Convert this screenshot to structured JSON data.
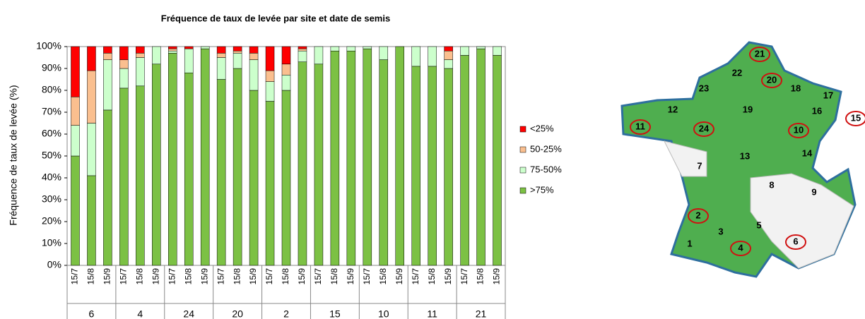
{
  "chart_data": {
    "type": "stacked_bar",
    "title": "Fréquence de taux de levée par site et date de semis",
    "y_label": "Fréquence de taux de levée (%)",
    "categories": [
      "15/7",
      "15/8",
      "15/9",
      "15/7",
      "15/8",
      "15/9",
      "15/7",
      "15/8",
      "15/9",
      "15/7",
      "15/8",
      "15/9",
      "15/7",
      "15/8",
      "15/9",
      "15/7",
      "15/8",
      "15/9",
      "15/7",
      "15/8",
      "15/9",
      "15/7",
      "15/8",
      "15/9",
      "15/7",
      "15/8",
      "15/9"
    ],
    "groups": [
      "6",
      "4",
      "24",
      "20",
      "2",
      "15",
      "10",
      "11",
      "21"
    ],
    "series": [
      {
        "name": ">75%",
        "color": "#7cc144",
        "values": [
          50,
          41,
          71,
          81,
          82,
          92,
          97,
          88,
          99,
          85,
          90,
          80,
          75,
          80,
          93,
          92,
          98,
          98,
          99,
          94,
          100,
          91,
          91,
          90,
          96,
          99,
          96
        ]
      },
      {
        "name": "75-50%",
        "color": "#ccffcc",
        "values": [
          14,
          24,
          23,
          9,
          13,
          8,
          1,
          11,
          1,
          10,
          7,
          14,
          9,
          7,
          5,
          8,
          2,
          2,
          1,
          6,
          0,
          9,
          9,
          4,
          4,
          1,
          4
        ]
      },
      {
        "name": "50-25%",
        "color": "#fabf8f",
        "values": [
          13,
          24,
          3,
          4,
          2,
          0,
          1,
          0,
          0,
          2,
          1,
          3,
          5,
          5,
          1,
          0,
          0,
          0,
          0,
          0,
          0,
          0,
          0,
          4,
          0,
          0,
          0
        ]
      },
      {
        "name": "<25%",
        "color": "#ff0000",
        "values": [
          23,
          11,
          3,
          6,
          3,
          0,
          1,
          1,
          0,
          3,
          2,
          3,
          11,
          8,
          1,
          0,
          0,
          0,
          0,
          0,
          0,
          0,
          0,
          2,
          0,
          0,
          0
        ]
      }
    ],
    "ylim": [
      0,
      100
    ],
    "yticks": [
      {
        "value": 0,
        "label": "0%"
      },
      {
        "value": 10,
        "label": "10%"
      },
      {
        "value": 20,
        "label": "20%"
      },
      {
        "value": 30,
        "label": "30%"
      },
      {
        "value": 40,
        "label": "40%"
      },
      {
        "value": 50,
        "label": "50%"
      },
      {
        "value": 60,
        "label": "60%"
      },
      {
        "value": 70,
        "label": "70%"
      },
      {
        "value": 80,
        "label": "80%"
      },
      {
        "value": 90,
        "label": "90%"
      },
      {
        "value": 100,
        "label": "100%"
      }
    ]
  },
  "map": {
    "sites": [
      {
        "label": "21",
        "circled": true
      },
      {
        "label": "22",
        "circled": false
      },
      {
        "label": "20",
        "circled": true
      },
      {
        "label": "18",
        "circled": false
      },
      {
        "label": "17",
        "circled": false
      },
      {
        "label": "23",
        "circled": false
      },
      {
        "label": "12",
        "circled": false
      },
      {
        "label": "19",
        "circled": false
      },
      {
        "label": "16",
        "circled": false
      },
      {
        "label": "15",
        "circled": true
      },
      {
        "label": "11",
        "circled": true
      },
      {
        "label": "24",
        "circled": true
      },
      {
        "label": "10",
        "circled": true
      },
      {
        "label": "13",
        "circled": false
      },
      {
        "label": "14",
        "circled": false
      },
      {
        "label": "7",
        "circled": false
      },
      {
        "label": "8",
        "circled": false
      },
      {
        "label": "9",
        "circled": false
      },
      {
        "label": "2",
        "circled": true
      },
      {
        "label": "5",
        "circled": false
      },
      {
        "label": "3",
        "circled": false
      },
      {
        "label": "1",
        "circled": false
      },
      {
        "label": "4",
        "circled": true
      },
      {
        "label": "6",
        "circled": true
      }
    ]
  }
}
